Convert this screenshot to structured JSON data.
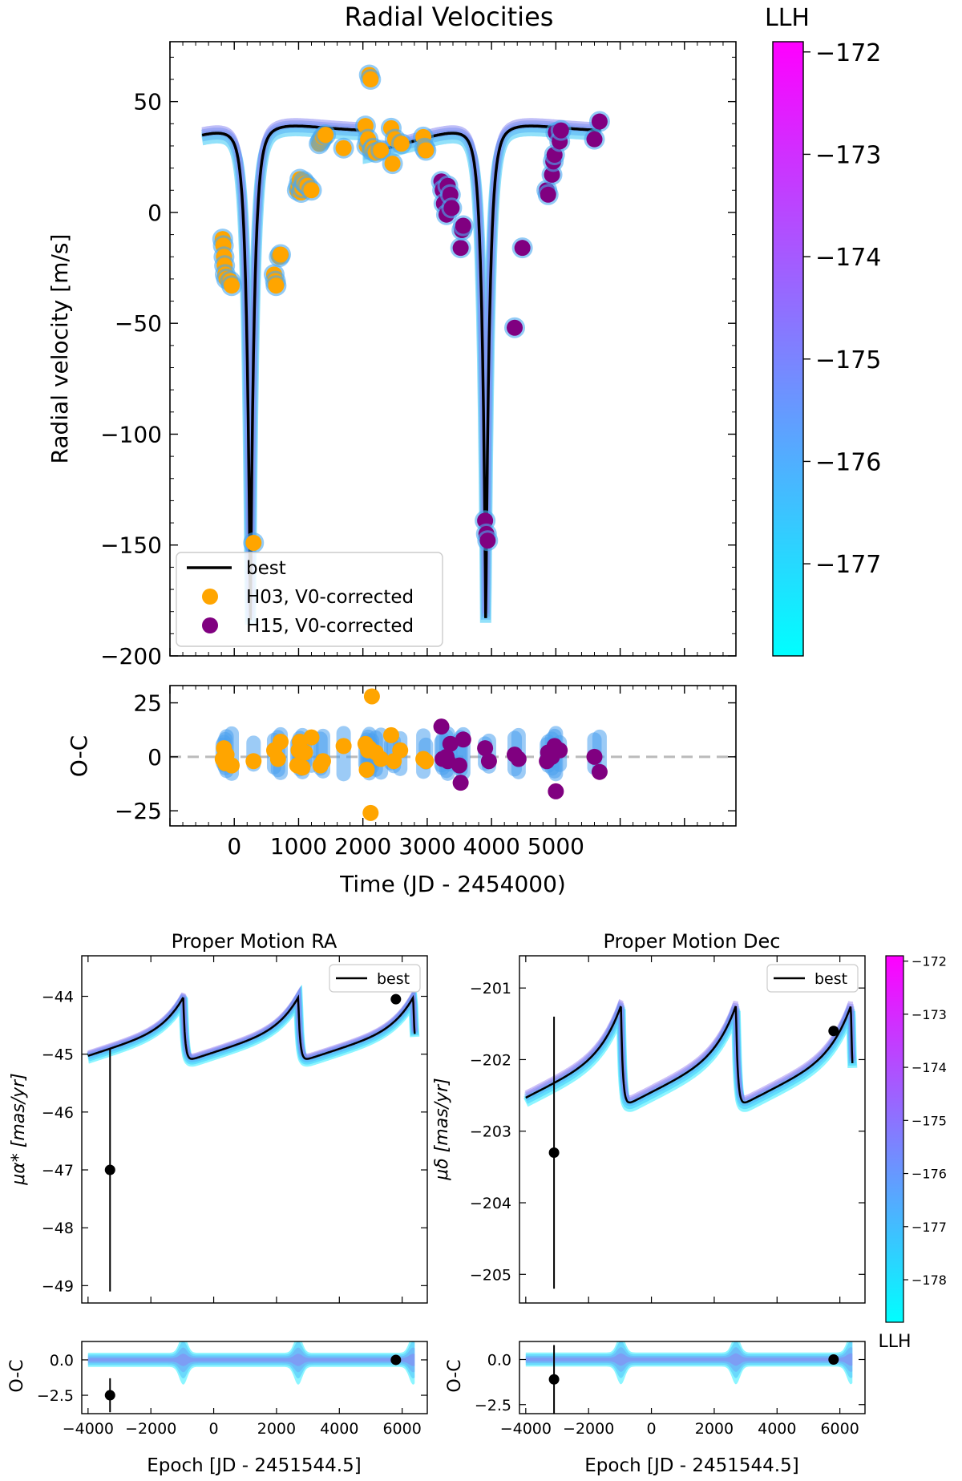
{
  "chart_data": [
    {
      "id": "rv",
      "type": "scatter",
      "title": "Radial Velocities",
      "xlabel": "Time (JD - 2454000)",
      "ylabel": "Radial velocity [m/s]",
      "xlim": [
        -1000,
        7800
      ],
      "ylim": [
        -200,
        77
      ],
      "yticks": [
        50,
        0,
        -50,
        -100,
        -150,
        -200
      ],
      "ytick_labels": [
        "50",
        "0",
        "−50",
        "−100",
        "−150",
        "−200"
      ],
      "legend": [
        "best",
        "H03, V0-corrected",
        "H15, V0-corrected"
      ],
      "series": [
        {
          "name": "H03, V0-corrected",
          "color": "#ffa500",
          "x": [
            -180,
            -170,
            -160,
            -150,
            -140,
            -120,
            -60,
            -40,
            620,
            640,
            650,
            700,
            720,
            980,
            1000,
            1020,
            1040,
            1060,
            1080,
            1100,
            1140,
            1200,
            1320,
            1340,
            1360,
            1380,
            1420,
            1700,
            2040,
            2060,
            2080,
            2100,
            2120,
            2140,
            2160,
            2200,
            2280,
            2440,
            2460,
            2500,
            2600,
            2940,
            2960,
            2980,
            300
          ],
          "y": [
            -12,
            -15,
            -20,
            -24,
            -28,
            -30,
            -31,
            -33,
            -28,
            -31,
            -33,
            -20,
            -19,
            10,
            12,
            15,
            9,
            11,
            14,
            13,
            12,
            10,
            31,
            32,
            33,
            34,
            35,
            29,
            39,
            30,
            33,
            62,
            60,
            28,
            29,
            27,
            28,
            38,
            22,
            33,
            31,
            34,
            29,
            28,
            -149
          ]
        },
        {
          "name": "H15, V0-corrected",
          "color": "#800080",
          "x": [
            3220,
            3240,
            3260,
            3300,
            3320,
            3360,
            3380,
            3520,
            3540,
            3560,
            3900,
            3920,
            3940,
            4360,
            4480,
            4860,
            4880,
            4940,
            4960,
            4980,
            5000,
            5060,
            5080,
            5600,
            5680
          ],
          "y": [
            14,
            10,
            4,
            -1,
            12,
            8,
            2,
            -16,
            -8,
            -6,
            -139,
            -145,
            -148,
            -52,
            -16,
            10,
            8,
            17,
            23,
            26,
            36,
            32,
            37,
            33,
            41
          ]
        }
      ],
      "colorbar": {
        "label": "LLH",
        "ticks": [
          -172,
          -173,
          -174,
          -175,
          -176,
          -177
        ],
        "tick_labels": [
          "−172",
          "−173",
          "−174",
          "−175",
          "−176",
          "−177"
        ],
        "range": [
          -177.9,
          -171.9
        ]
      },
      "residuals": {
        "ylabel": "O-C",
        "ylim": [
          -32,
          33
        ],
        "yticks": [
          25,
          0,
          -25
        ],
        "ytick_labels": [
          "25",
          "0",
          "−25"
        ],
        "xticks": [
          0,
          1000,
          2000,
          3000,
          4000,
          5000
        ],
        "xtick_labels": [
          "0",
          "1000",
          "2000",
          "3000",
          "4000",
          "5000"
        ],
        "H03": {
          "x": [
            -180,
            -160,
            -140,
            -120,
            -40,
            300,
            620,
            680,
            720,
            980,
            1000,
            1020,
            1060,
            1100,
            1200,
            1340,
            1380,
            1700,
            2040,
            2060,
            2080,
            2100,
            2120,
            2140,
            2200,
            2280,
            2440,
            2480,
            2580,
            2940,
            2980
          ],
          "y": [
            -1,
            4,
            -3,
            1,
            -4,
            -2,
            3,
            -1,
            7,
            -4,
            3,
            7,
            -5,
            2,
            9,
            -4,
            -2,
            5,
            6,
            -6,
            3,
            4,
            -26,
            28,
            2,
            -1,
            10,
            -2,
            3,
            -1,
            -2
          ]
        },
        "H15": {
          "x": [
            3220,
            3240,
            3300,
            3320,
            3360,
            3500,
            3520,
            3560,
            3900,
            3960,
            4360,
            4420,
            4860,
            4880,
            4940,
            4980,
            5000,
            5060,
            5600,
            5680
          ],
          "y": [
            14,
            -1,
            0,
            -2,
            6,
            -4,
            -12,
            8,
            4,
            -2,
            1,
            -1,
            -2,
            2,
            0,
            5,
            -16,
            3,
            0,
            -7
          ]
        }
      }
    },
    {
      "id": "pm_ra",
      "type": "line",
      "title": "Proper Motion RA",
      "xlabel": "Epoch [JD - 2451544.5]",
      "ylabel": "μα* [mas/yr]",
      "xlim": [
        -4200,
        6800
      ],
      "ylim": [
        -49.3,
        -43.3
      ],
      "yticks": [
        -44,
        -45,
        -46,
        -47,
        -48,
        -49
      ],
      "ytick_labels": [
        "−44",
        "−45",
        "−46",
        "−47",
        "−48",
        "−49"
      ],
      "legend": [
        "best"
      ],
      "points": [
        {
          "x": -3300,
          "y": -47.0,
          "err": 2.1
        },
        {
          "x": 5800,
          "y": -44.05,
          "err": 0.05
        }
      ],
      "model": {
        "low": -45.2,
        "high": -44.02,
        "start": -44.7
      },
      "residuals": {
        "ylabel": "O-C",
        "ylim": [
          -3.8,
          1.3
        ],
        "yticks": [
          0.0,
          -2.5
        ],
        "ytick_labels": [
          "0.0",
          "−2.5"
        ],
        "points": [
          {
            "x": -3300,
            "y": -2.5,
            "err": 1.2
          },
          {
            "x": 5800,
            "y": 0.0,
            "err": 0.05
          }
        ]
      },
      "xticks": [
        -4000,
        -2000,
        0,
        2000,
        4000,
        6000
      ],
      "xtick_labels": [
        "−4000",
        "−2000",
        "0",
        "2000",
        "4000",
        "6000"
      ]
    },
    {
      "id": "pm_dec",
      "type": "line",
      "title": "Proper Motion Dec",
      "xlabel": "Epoch [JD - 2451544.5]",
      "ylabel": "μδ [mas/yr]",
      "xlim": [
        -4200,
        6800
      ],
      "ylim": [
        -205.4,
        -200.55
      ],
      "yticks": [
        -201,
        -202,
        -203,
        -204,
        -205
      ],
      "ytick_labels": [
        "−201",
        "−202",
        "−203",
        "−204",
        "−205"
      ],
      "legend": [
        "best"
      ],
      "points": [
        {
          "x": -3100,
          "y": -203.3,
          "err": 1.9
        },
        {
          "x": 5800,
          "y": -201.6,
          "err": 0.05
        }
      ],
      "model": {
        "low": -202.75,
        "high": -201.25,
        "start": -202.5
      },
      "residuals": {
        "ylabel": "O-C",
        "ylim": [
          -3.0,
          1.0
        ],
        "yticks": [
          0.0,
          -2.5
        ],
        "ytick_labels": [
          "0.0",
          "−2.5"
        ],
        "points": [
          {
            "x": -3100,
            "y": -1.1,
            "err": 1.9
          },
          {
            "x": 5800,
            "y": 0.0,
            "err": 0.05
          }
        ]
      },
      "xticks": [
        -4000,
        -2000,
        0,
        2000,
        4000,
        6000
      ],
      "xtick_labels": [
        "−4000",
        "−2000",
        "0",
        "2000",
        "4000",
        "6000"
      ],
      "colorbar": {
        "label": "LLH",
        "ticks": [
          -172,
          -173,
          -174,
          -175,
          -176,
          -177,
          -178
        ],
        "tick_labels": [
          "−172",
          "−173",
          "−174",
          "−175",
          "−176",
          "−177",
          "−178"
        ],
        "range": [
          -178.8,
          -171.9
        ]
      }
    }
  ]
}
